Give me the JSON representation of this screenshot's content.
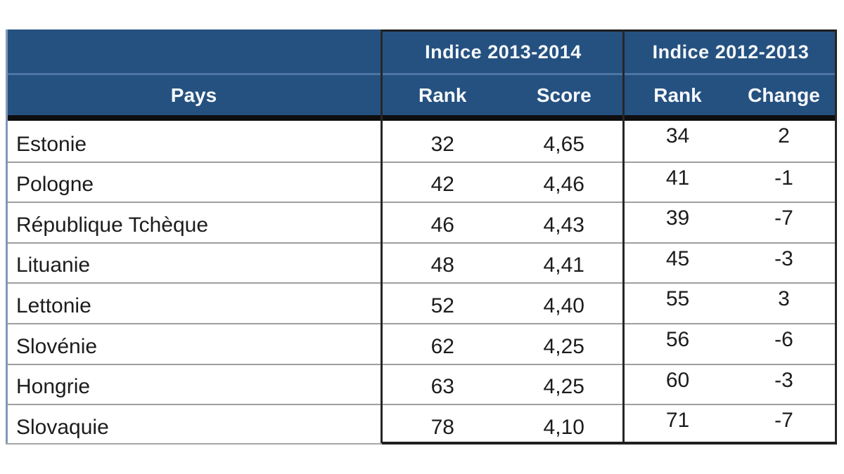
{
  "colors": {
    "header_blue": "#255180",
    "header_divider_blue": "#4d76a3",
    "thick_rule_black": "#0e0e0e",
    "grid_gray": "#9e9e9e",
    "group_border_dark": "#262626",
    "left_border_bluegray": "#7f9ab8",
    "data_text": "#1c1c1c",
    "header_text": "#f7f9fc",
    "page_background": "#ffffff"
  },
  "table": {
    "headers": {
      "group1": "Indice 2013-2014",
      "group2": "Indice 2012-2013",
      "pays": "Pays",
      "rank1": "Rank",
      "score": "Score",
      "rank2": "Rank",
      "change": "Change"
    },
    "rows": [
      {
        "pays": "Estonie",
        "rank1": "32",
        "score": "4,65",
        "rank2": "34",
        "change": "2"
      },
      {
        "pays": "Pologne",
        "rank1": "42",
        "score": "4,46",
        "rank2": "41",
        "change": "-1"
      },
      {
        "pays": "République Tchèque",
        "rank1": "46",
        "score": "4,43",
        "rank2": "39",
        "change": "-7"
      },
      {
        "pays": "Lituanie",
        "rank1": "48",
        "score": "4,41",
        "rank2": "45",
        "change": "-3"
      },
      {
        "pays": "Lettonie",
        "rank1": "52",
        "score": "4,40",
        "rank2": "55",
        "change": "3"
      },
      {
        "pays": "Slovénie",
        "rank1": "62",
        "score": "4,25",
        "rank2": "56",
        "change": "-6"
      },
      {
        "pays": "Hongrie",
        "rank1": "63",
        "score": "4,25",
        "rank2": "60",
        "change": "-3"
      },
      {
        "pays": "Slovaquie",
        "rank1": "78",
        "score": "4,10",
        "rank2": "71",
        "change": "-7"
      }
    ]
  },
  "chart_data": {
    "type": "table",
    "title": "",
    "decimal_separator": ",",
    "column_groups": [
      {
        "label": "",
        "span": 1
      },
      {
        "label": "Indice 2013-2014",
        "span": 2
      },
      {
        "label": "Indice 2012-2013",
        "span": 2
      }
    ],
    "columns": [
      "Pays",
      "Rank",
      "Score",
      "Rank",
      "Change"
    ],
    "rows": [
      [
        "Estonie",
        32,
        4.65,
        34,
        2
      ],
      [
        "Pologne",
        42,
        4.46,
        41,
        -1
      ],
      [
        "République Tchèque",
        46,
        4.43,
        39,
        -7
      ],
      [
        "Lituanie",
        48,
        4.41,
        45,
        -3
      ],
      [
        "Lettonie",
        52,
        4.4,
        55,
        3
      ],
      [
        "Slovénie",
        62,
        4.25,
        56,
        -6
      ],
      [
        "Hongrie",
        63,
        4.25,
        60,
        -3
      ],
      [
        "Slovaquie",
        78,
        4.1,
        71,
        -7
      ]
    ]
  }
}
